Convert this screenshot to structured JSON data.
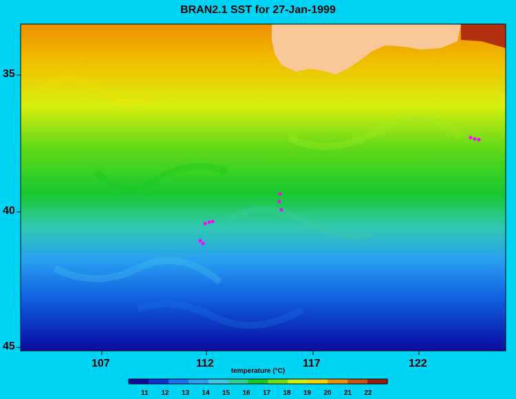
{
  "title": "BRAN2.1 SST for 27-Jan-1999",
  "y_axis": {
    "ticks": [
      "35",
      "40",
      "45"
    ]
  },
  "x_axis": {
    "ticks": [
      "107",
      "112",
      "117",
      "122"
    ]
  },
  "colorbar": {
    "title": "temperature (°C)",
    "ticks": [
      "11",
      "12",
      "13",
      "14",
      "15",
      "16",
      "17",
      "18",
      "19",
      "20",
      "21",
      "22"
    ],
    "colors": [
      "#0a0aa0",
      "#0b2fd8",
      "#1670f0",
      "#2aa0f5",
      "#40c8e8",
      "#30d090",
      "#18c820",
      "#70e010",
      "#d0f010",
      "#f8d000",
      "#f09000",
      "#d05010",
      "#a01810"
    ]
  },
  "land_color": "#f8c898",
  "marker_color": "#ff00ff"
}
